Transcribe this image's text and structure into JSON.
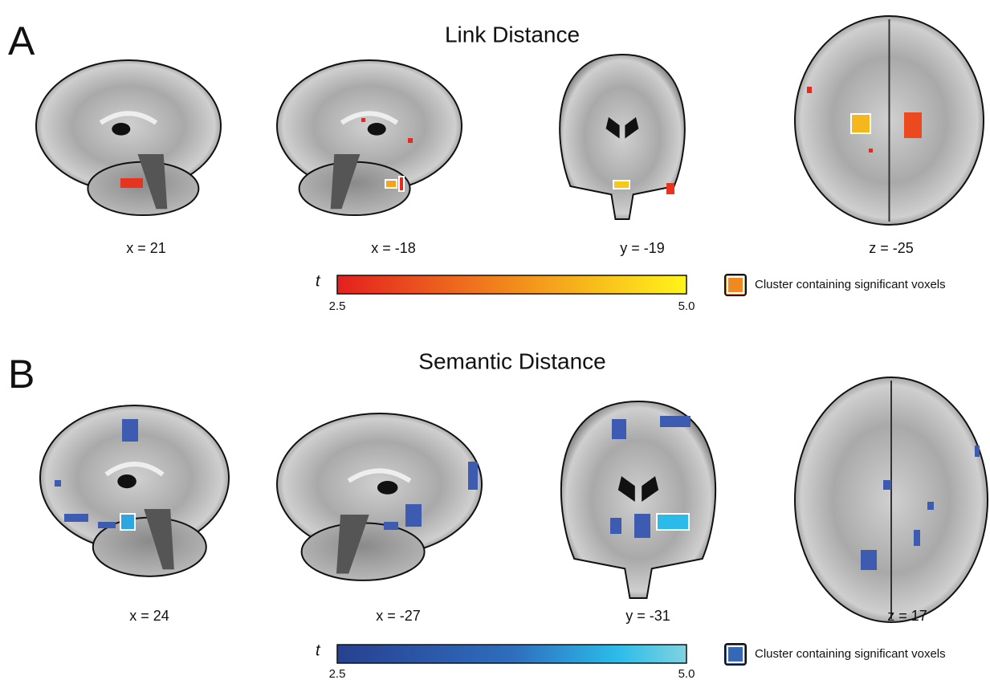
{
  "panels": [
    {
      "label": "A",
      "title": "Link Distance",
      "slices": [
        "x = 21",
        "x = -18",
        "y = -19",
        "z = -25"
      ],
      "colorbar": {
        "symbol": "t",
        "min_label": "2.5",
        "max_label": "5.0"
      },
      "legend": "Cluster containing significant voxels"
    },
    {
      "label": "B",
      "title": "Semantic Distance",
      "slices": [
        "x = 24",
        "x = -27",
        "y = -31",
        "z = 17"
      ],
      "colorbar": {
        "symbol": "t",
        "min_label": "2.5",
        "max_label": "5.0"
      },
      "legend": "Cluster containing significant voxels"
    }
  ]
}
